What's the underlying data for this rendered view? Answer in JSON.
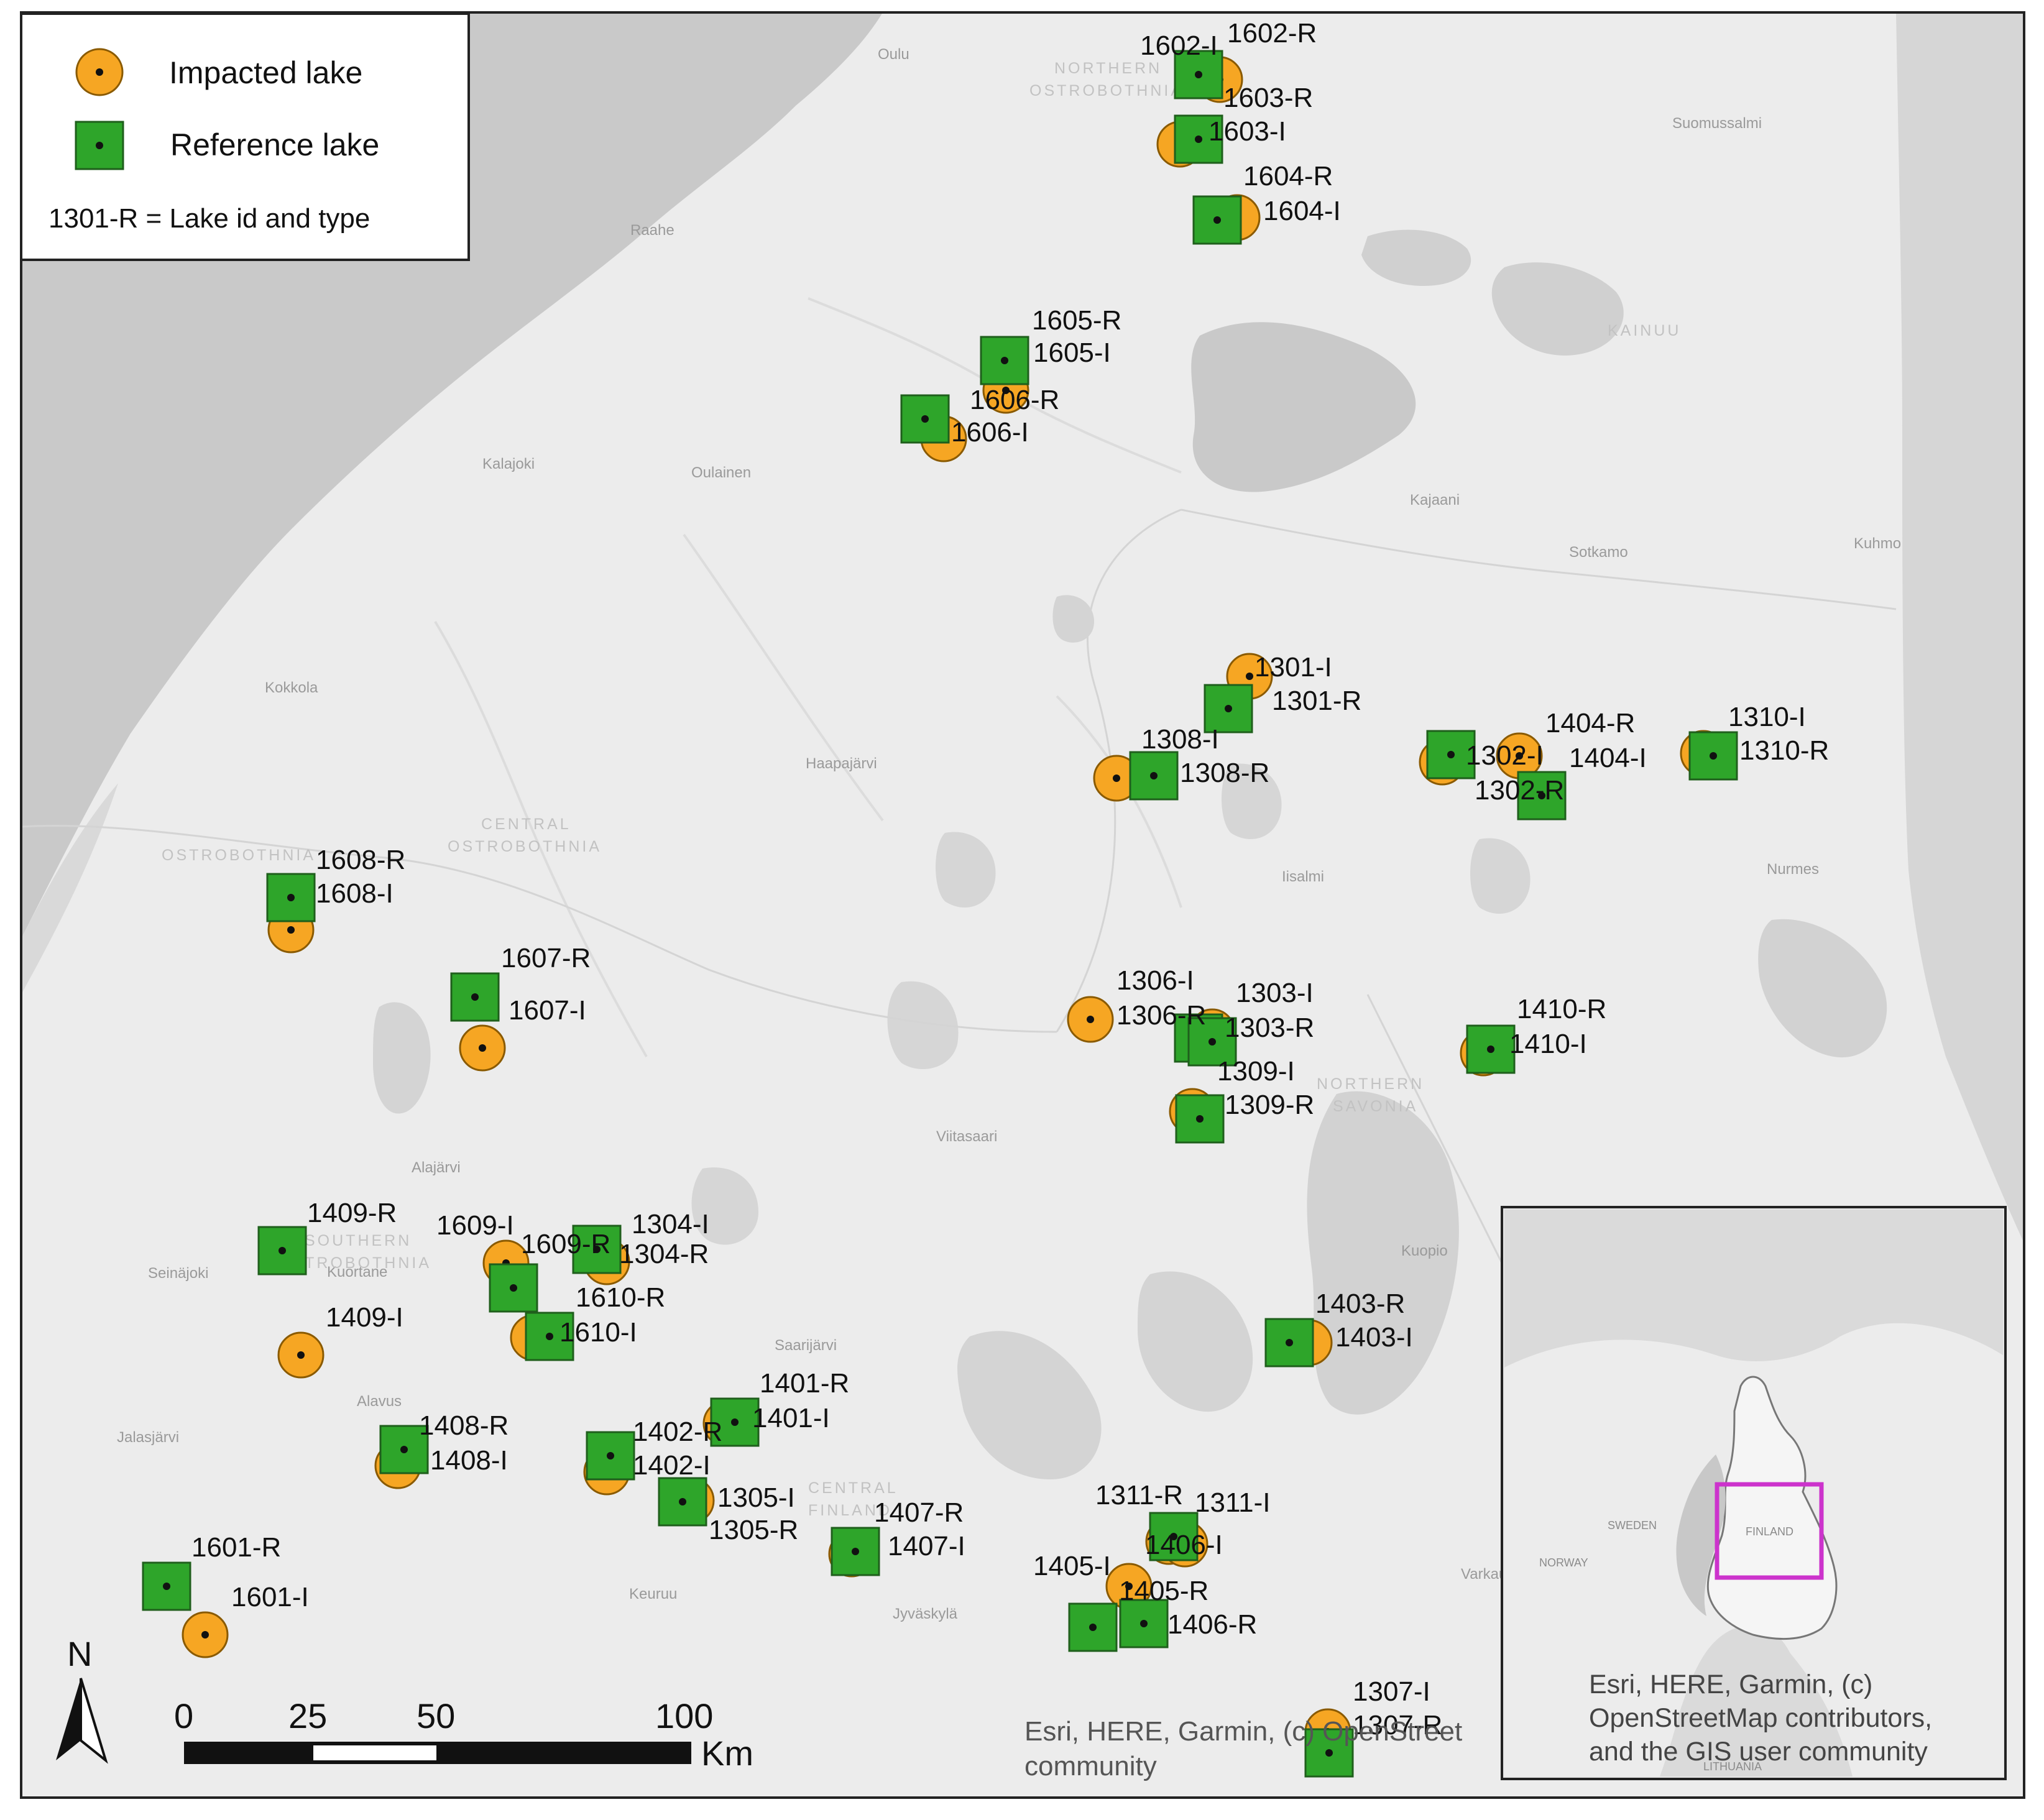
{
  "legend": {
    "impacted_label": "Impacted lake",
    "reference_label": "Reference lake",
    "note": "1301-R = Lake id and type",
    "impacted_color": "#F6A623",
    "reference_color": "#2EA52A"
  },
  "scale_bar": {
    "ticks": [
      "0",
      "25",
      "50",
      "100"
    ],
    "unit": "Km",
    "north_label": "N"
  },
  "attribution": {
    "main_line1": "Esri, HERE, Garmin, (c) OpenStreet",
    "main_line2": "community",
    "inset_line1": "Esri, HERE, Garmin, (c)",
    "inset_line2": "OpenStreetMap contributors,",
    "inset_line3": "and the GIS user community"
  },
  "inset": {
    "label_finland": "FINLAND",
    "label_sweden": "SWEDEN",
    "label_norway": "NORWAY",
    "label_lithuania": "LITHUANIA",
    "highlight_color": "#CC33CC"
  },
  "place_names": {
    "oulu": "Oulu",
    "raahe": "Raahe",
    "kalajoki": "Kalajoki",
    "oulainen": "Oulainen",
    "kajaani": "Kajaani",
    "sotkamo": "Sotkamo",
    "kuhmo": "Kuhmo",
    "suomussalmi": "Suomussalmi",
    "kokkola": "Kokkola",
    "haapajarvi": "Haapajärvi",
    "iisalmi": "Iisalmi",
    "nurmes": "Nurmes",
    "viitasaari": "Viitasaari",
    "alajarvi": "Alajärvi",
    "seinajoki": "Seinäjoki",
    "kuortane": "Kuortane",
    "alavus": "Alavus",
    "jalasjarvi": "Jalasjärvi",
    "saarijarvi": "Saarijärvi",
    "keuruu": "Keuruu",
    "jyvaskyla": "Jyväskylä",
    "kuopio": "Kuopio",
    "varkaus": "Varkaus"
  },
  "regions": {
    "northern_ostrobothnia_1": "NORTHERN",
    "northern_ostrobothnia_2": "OSTROBOTHNIA",
    "kainuu": "KAINUU",
    "ostrobothnia": "OSTROBOTHNIA",
    "central_ostrobothnia_1": "CENTRAL",
    "central_ostrobothnia_2": "OSTROBOTHNIA",
    "southern_ostrobothnia_1": "SOUTHERN",
    "southern_ostrobothnia_2": "OSTROBOTHNIA",
    "northern_savonia_1": "NORTHERN",
    "northern_savonia_2": "SAVONIA",
    "central_finland_1": "CENTRAL",
    "central_finland_2": "FINLAND"
  },
  "lakes": [
    {
      "id": "1602-I",
      "type": "impacted"
    },
    {
      "id": "1602-R",
      "type": "reference"
    },
    {
      "id": "1603-R",
      "type": "reference"
    },
    {
      "id": "1603-I",
      "type": "impacted"
    },
    {
      "id": "1604-R",
      "type": "reference"
    },
    {
      "id": "1604-I",
      "type": "impacted"
    },
    {
      "id": "1605-R",
      "type": "reference"
    },
    {
      "id": "1605-I",
      "type": "impacted"
    },
    {
      "id": "1606-R",
      "type": "reference"
    },
    {
      "id": "1606-I",
      "type": "impacted"
    },
    {
      "id": "1301-I",
      "type": "impacted"
    },
    {
      "id": "1301-R",
      "type": "reference"
    },
    {
      "id": "1308-I",
      "type": "impacted"
    },
    {
      "id": "1308-R",
      "type": "reference"
    },
    {
      "id": "1404-R",
      "type": "reference"
    },
    {
      "id": "1404-I",
      "type": "impacted"
    },
    {
      "id": "1302-I",
      "type": "impacted"
    },
    {
      "id": "1302-R",
      "type": "reference"
    },
    {
      "id": "1310-I",
      "type": "impacted"
    },
    {
      "id": "1310-R",
      "type": "reference"
    },
    {
      "id": "1608-R",
      "type": "reference"
    },
    {
      "id": "1608-I",
      "type": "impacted"
    },
    {
      "id": "1607-R",
      "type": "reference"
    },
    {
      "id": "1607-I",
      "type": "impacted"
    },
    {
      "id": "1306-I",
      "type": "impacted"
    },
    {
      "id": "1306-R",
      "type": "reference"
    },
    {
      "id": "1303-I",
      "type": "impacted"
    },
    {
      "id": "1303-R",
      "type": "reference"
    },
    {
      "id": "1309-I",
      "type": "impacted"
    },
    {
      "id": "1309-R",
      "type": "reference"
    },
    {
      "id": "1410-R",
      "type": "reference"
    },
    {
      "id": "1410-I",
      "type": "impacted"
    },
    {
      "id": "1409-R",
      "type": "reference"
    },
    {
      "id": "1409-I",
      "type": "impacted"
    },
    {
      "id": "1609-I",
      "type": "impacted"
    },
    {
      "id": "1609-R",
      "type": "reference"
    },
    {
      "id": "1304-I",
      "type": "impacted"
    },
    {
      "id": "1304-R",
      "type": "reference"
    },
    {
      "id": "1610-R",
      "type": "reference"
    },
    {
      "id": "1610-I",
      "type": "impacted"
    },
    {
      "id": "1403-R",
      "type": "reference"
    },
    {
      "id": "1403-I",
      "type": "impacted"
    },
    {
      "id": "1401-R",
      "type": "reference"
    },
    {
      "id": "1401-I",
      "type": "impacted"
    },
    {
      "id": "1408-R",
      "type": "reference"
    },
    {
      "id": "1408-I",
      "type": "impacted"
    },
    {
      "id": "1402-R",
      "type": "reference"
    },
    {
      "id": "1402-I",
      "type": "impacted"
    },
    {
      "id": "1305-I",
      "type": "impacted"
    },
    {
      "id": "1305-R",
      "type": "reference"
    },
    {
      "id": "1407-R",
      "type": "reference"
    },
    {
      "id": "1407-I",
      "type": "impacted"
    },
    {
      "id": "1311-R",
      "type": "reference"
    },
    {
      "id": "1311-I",
      "type": "impacted"
    },
    {
      "id": "1406-I",
      "type": "impacted"
    },
    {
      "id": "1405-I",
      "type": "impacted"
    },
    {
      "id": "1405-R",
      "type": "reference"
    },
    {
      "id": "1406-R",
      "type": "reference"
    },
    {
      "id": "1601-R",
      "type": "reference"
    },
    {
      "id": "1601-I",
      "type": "impacted"
    },
    {
      "id": "1307-I",
      "type": "impacted"
    },
    {
      "id": "1307-R",
      "type": "reference"
    }
  ]
}
